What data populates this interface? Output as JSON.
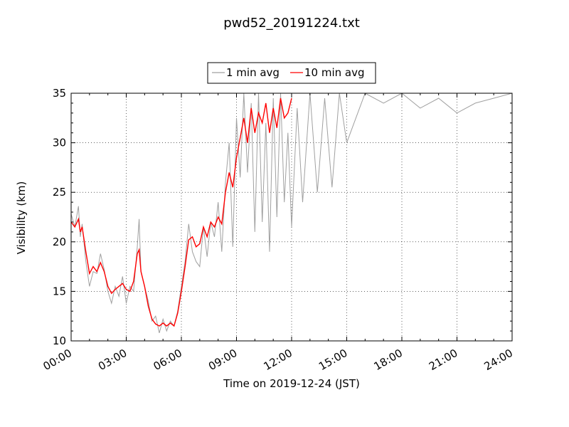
{
  "chart_data": {
    "type": "line",
    "title": "pwd52_20191224.txt",
    "xlabel": "Time on 2019-12-24 (JST)",
    "ylabel": "Visibility (km)",
    "xlim": [
      0,
      24
    ],
    "ylim": [
      10,
      35
    ],
    "x_ticks": [
      0,
      3,
      6,
      9,
      12,
      15,
      18,
      21,
      24
    ],
    "x_tick_labels": [
      "00:00",
      "03:00",
      "06:00",
      "09:00",
      "12:00",
      "15:00",
      "18:00",
      "21:00",
      "24:00"
    ],
    "y_ticks": [
      10,
      15,
      20,
      25,
      30,
      35
    ],
    "y_tick_labels": [
      "10",
      "15",
      "20",
      "25",
      "30",
      "35"
    ],
    "grid": true,
    "legend_position": "top-center",
    "series": [
      {
        "name": "1 min avg",
        "color": "#a0a0a0",
        "x": [
          0.0,
          0.2,
          0.4,
          0.5,
          0.6,
          0.8,
          1.0,
          1.2,
          1.4,
          1.6,
          1.8,
          2.0,
          2.2,
          2.4,
          2.6,
          2.8,
          3.0,
          3.2,
          3.4,
          3.6,
          3.7,
          3.8,
          4.0,
          4.2,
          4.4,
          4.6,
          4.8,
          5.0,
          5.2,
          5.4,
          5.6,
          5.8,
          6.0,
          6.2,
          6.4,
          6.6,
          6.8,
          7.0,
          7.2,
          7.4,
          7.6,
          7.8,
          8.0,
          8.2,
          8.4,
          8.6,
          8.8,
          9.0,
          9.2,
          9.4,
          9.6,
          9.8,
          10.0,
          10.2,
          10.4,
          10.6,
          10.8,
          11.0,
          11.2,
          11.4,
          11.6,
          11.8,
          12.0,
          12.3,
          12.6,
          13.0,
          13.4,
          13.8,
          14.2,
          14.6,
          15.0,
          16.0,
          17.0,
          18.0,
          19.0,
          20.0,
          21.0,
          22.0,
          23.0,
          24.0
        ],
        "y": [
          22.8,
          21.5,
          23.6,
          20.5,
          21.8,
          18.0,
          15.5,
          17.0,
          16.8,
          18.8,
          17.2,
          15.0,
          13.8,
          15.5,
          14.5,
          16.5,
          13.8,
          15.5,
          15.0,
          19.5,
          22.3,
          17.0,
          15.5,
          14.0,
          12.0,
          12.5,
          10.8,
          12.2,
          11.0,
          12.0,
          11.5,
          13.0,
          15.5,
          18.0,
          21.8,
          19.0,
          18.0,
          17.5,
          21.5,
          18.5,
          22.0,
          20.5,
          24.0,
          19.0,
          26.0,
          30.0,
          19.5,
          32.5,
          26.5,
          35.0,
          27.0,
          34.0,
          21.0,
          35.0,
          22.0,
          32.0,
          19.0,
          34.5,
          22.5,
          35.0,
          24.0,
          31.0,
          21.5,
          33.5,
          24.0,
          35.0,
          25.0,
          34.5,
          25.5,
          35.0,
          30.0,
          35.0,
          34.0,
          35.0,
          33.5,
          34.5,
          33.0,
          34.0,
          34.5,
          35.0
        ]
      },
      {
        "name": "10 min avg",
        "color": "#ff0000",
        "x": [
          0.0,
          0.2,
          0.4,
          0.5,
          0.6,
          0.8,
          1.0,
          1.2,
          1.4,
          1.6,
          1.8,
          2.0,
          2.2,
          2.4,
          2.6,
          2.8,
          3.0,
          3.2,
          3.4,
          3.6,
          3.7,
          3.8,
          4.0,
          4.2,
          4.4,
          4.6,
          4.8,
          5.0,
          5.2,
          5.4,
          5.6,
          5.8,
          6.0,
          6.2,
          6.4,
          6.6,
          6.8,
          7.0,
          7.2,
          7.4,
          7.6,
          7.8,
          8.0,
          8.2,
          8.4,
          8.6,
          8.8,
          9.0,
          9.2,
          9.4,
          9.6,
          9.8,
          10.0,
          10.2,
          10.4,
          10.6,
          10.8,
          11.0,
          11.2,
          11.4,
          11.6,
          11.8,
          12.0
        ],
        "y": [
          22.0,
          21.5,
          22.3,
          21.0,
          21.5,
          19.0,
          16.8,
          17.5,
          17.0,
          17.9,
          17.0,
          15.5,
          14.8,
          15.2,
          15.5,
          15.8,
          15.2,
          15.0,
          16.0,
          18.8,
          19.2,
          17.0,
          15.5,
          13.5,
          12.2,
          11.7,
          11.5,
          11.8,
          11.5,
          11.8,
          11.5,
          12.8,
          15.0,
          17.5,
          20.2,
          20.5,
          19.5,
          19.8,
          21.5,
          20.5,
          22.0,
          21.5,
          22.5,
          21.8,
          25.0,
          27.0,
          25.5,
          28.5,
          30.5,
          32.5,
          30.0,
          33.5,
          31.0,
          33.0,
          32.0,
          34.0,
          31.0,
          33.5,
          31.5,
          34.5,
          32.5,
          33.0,
          34.5
        ]
      }
    ]
  }
}
